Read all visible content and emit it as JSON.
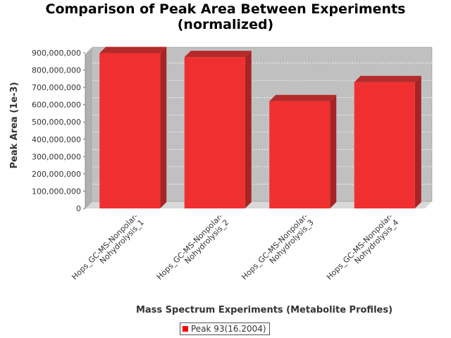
{
  "chart_data": {
    "type": "bar",
    "title_line1": "Comparison of Peak Area Between Experiments",
    "title_line2": "(normalized)",
    "xlabel": "Mass Spectrum Experiments (Metabolite Profiles)",
    "ylabel": "Peak Area (1e-3)",
    "categories": [
      [
        "Hops_GC-MS-Nonpolar-",
        "Nohydrolysis_1"
      ],
      [
        "Hops_GC-MS-Nonpolar-",
        "Nohydrolysis_2"
      ],
      [
        "Hops_GC-MS-Nonpolar-",
        "Nohydrolysis_3"
      ],
      [
        "Hops_GC-MS-Nonpolar-",
        "Nohydrolysis_4"
      ]
    ],
    "series": [
      {
        "name": "Peak 93(16.2004)",
        "values": [
          898000000,
          875000000,
          620000000,
          730000000
        ]
      }
    ],
    "ylim": [
      0,
      900000000
    ],
    "yticks": [
      "0",
      "100,000,000",
      "200,000,000",
      "300,000,000",
      "400,000,000",
      "500,000,000",
      "600,000,000",
      "700,000,000",
      "800,000,000",
      "900,000,000"
    ],
    "grid": true,
    "legend_position": "bottom",
    "colors": {
      "bar": "#ff0000",
      "plot_bg": "#c0c0c0"
    }
  }
}
